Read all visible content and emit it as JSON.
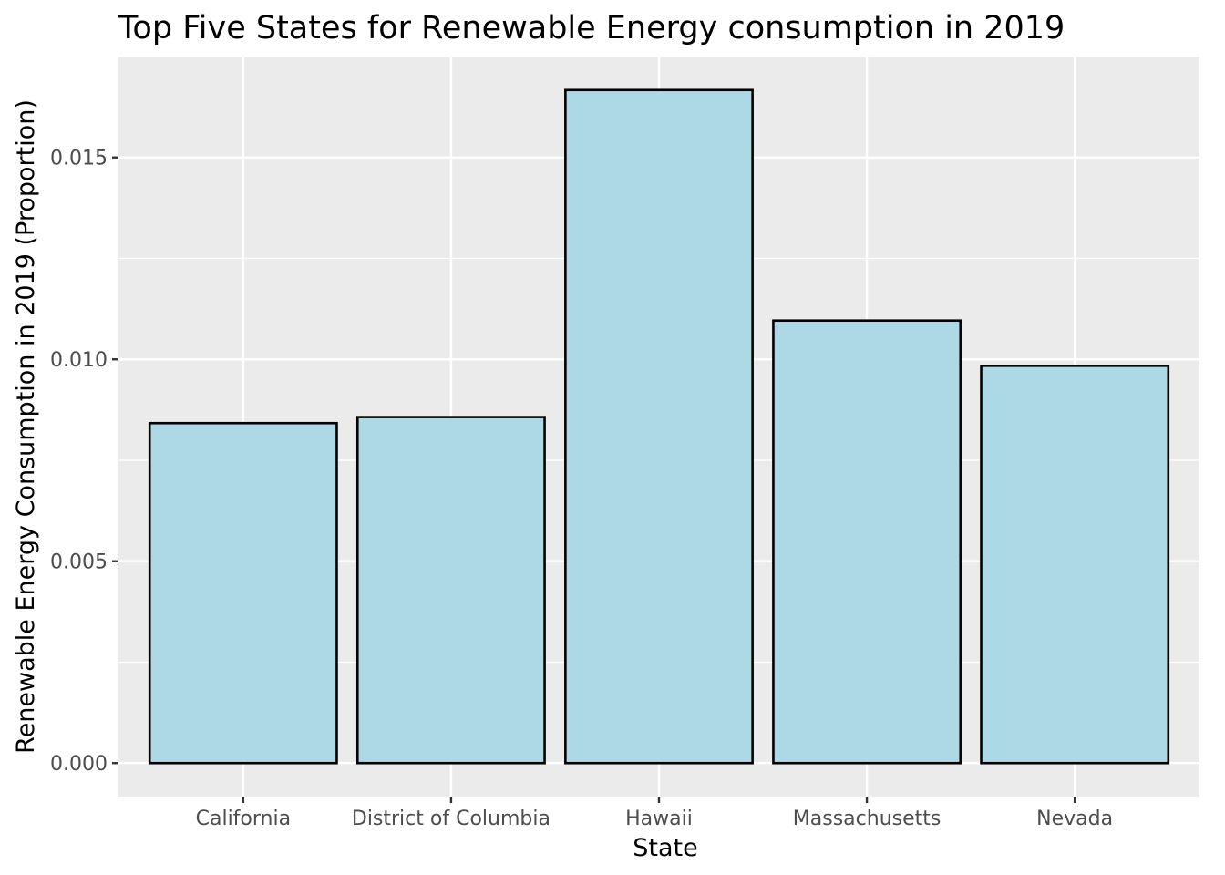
{
  "chart_data": {
    "type": "bar",
    "title": "Top Five States for Renewable Energy consumption in 2019",
    "xlabel": "State",
    "ylabel": "Renewable Energy Consumption in 2019 (Proportion)",
    "categories": [
      "California",
      "District of Columbia",
      "Hawaii",
      "Massachusetts",
      "Nevada"
    ],
    "values": [
      0.00842,
      0.00857,
      0.01667,
      0.01096,
      0.00984
    ],
    "ylim": [
      -0.00083,
      0.0175
    ],
    "yticks": [
      0.0,
      0.005,
      0.01,
      0.015
    ],
    "ytick_labels": [
      "0.000",
      "0.005",
      "0.010",
      "0.015"
    ],
    "grid": true,
    "legend": "none",
    "colors": {
      "bar_fill": "#add8e6",
      "bar_stroke": "#000000",
      "panel_background": "#ebebeb",
      "grid": "#ffffff"
    }
  }
}
